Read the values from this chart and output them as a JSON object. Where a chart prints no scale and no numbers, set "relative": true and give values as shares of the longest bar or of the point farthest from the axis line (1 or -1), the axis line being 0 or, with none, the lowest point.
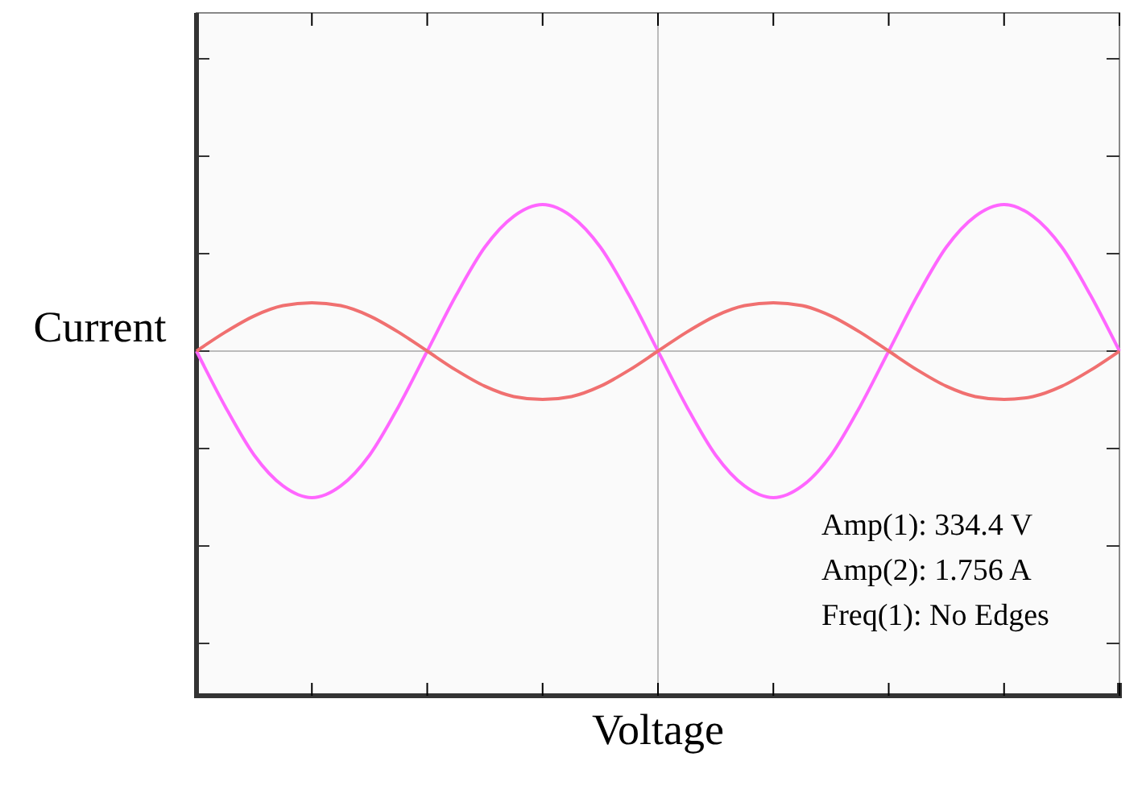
{
  "chart_data": {
    "type": "line",
    "relative": true,
    "xlabel": "Voltage",
    "ylabel": "Current",
    "categories": [
      null,
      null,
      null,
      null,
      null,
      null,
      null,
      null,
      null,
      null,
      null,
      null,
      null,
      null,
      null,
      null,
      null,
      null,
      null,
      null,
      null,
      null,
      null,
      null,
      null,
      null,
      null,
      null,
      null,
      null,
      null,
      null,
      null
    ],
    "series": [
      {
        "color": "#ff66ff",
        "values": [
          0,
          -0.38,
          -0.71,
          -0.92,
          -1,
          -0.92,
          -0.71,
          -0.38,
          0,
          0.38,
          0.71,
          0.92,
          1,
          0.92,
          0.71,
          0.38,
          0,
          -0.38,
          -0.71,
          -0.92,
          -1,
          -0.92,
          -0.71,
          -0.38,
          0,
          0.38,
          0.71,
          0.92,
          1,
          0.92,
          0.71,
          0.38,
          0
        ]
      },
      {
        "color": "#f07070",
        "values": [
          0,
          0.13,
          0.24,
          0.31,
          0.33,
          0.31,
          0.24,
          0.13,
          0,
          -0.13,
          -0.24,
          -0.31,
          -0.33,
          -0.31,
          -0.24,
          -0.13,
          0,
          0.13,
          0.24,
          0.31,
          0.33,
          0.31,
          0.24,
          0.13,
          0,
          -0.13,
          -0.24,
          -0.31,
          -0.33,
          -0.31,
          -0.24,
          -0.13,
          0
        ]
      }
    ],
    "annotations": [
      "Amp(1): 334.4 V",
      "Amp(2): 1.756 A",
      "Freq(1): No Edges"
    ]
  }
}
